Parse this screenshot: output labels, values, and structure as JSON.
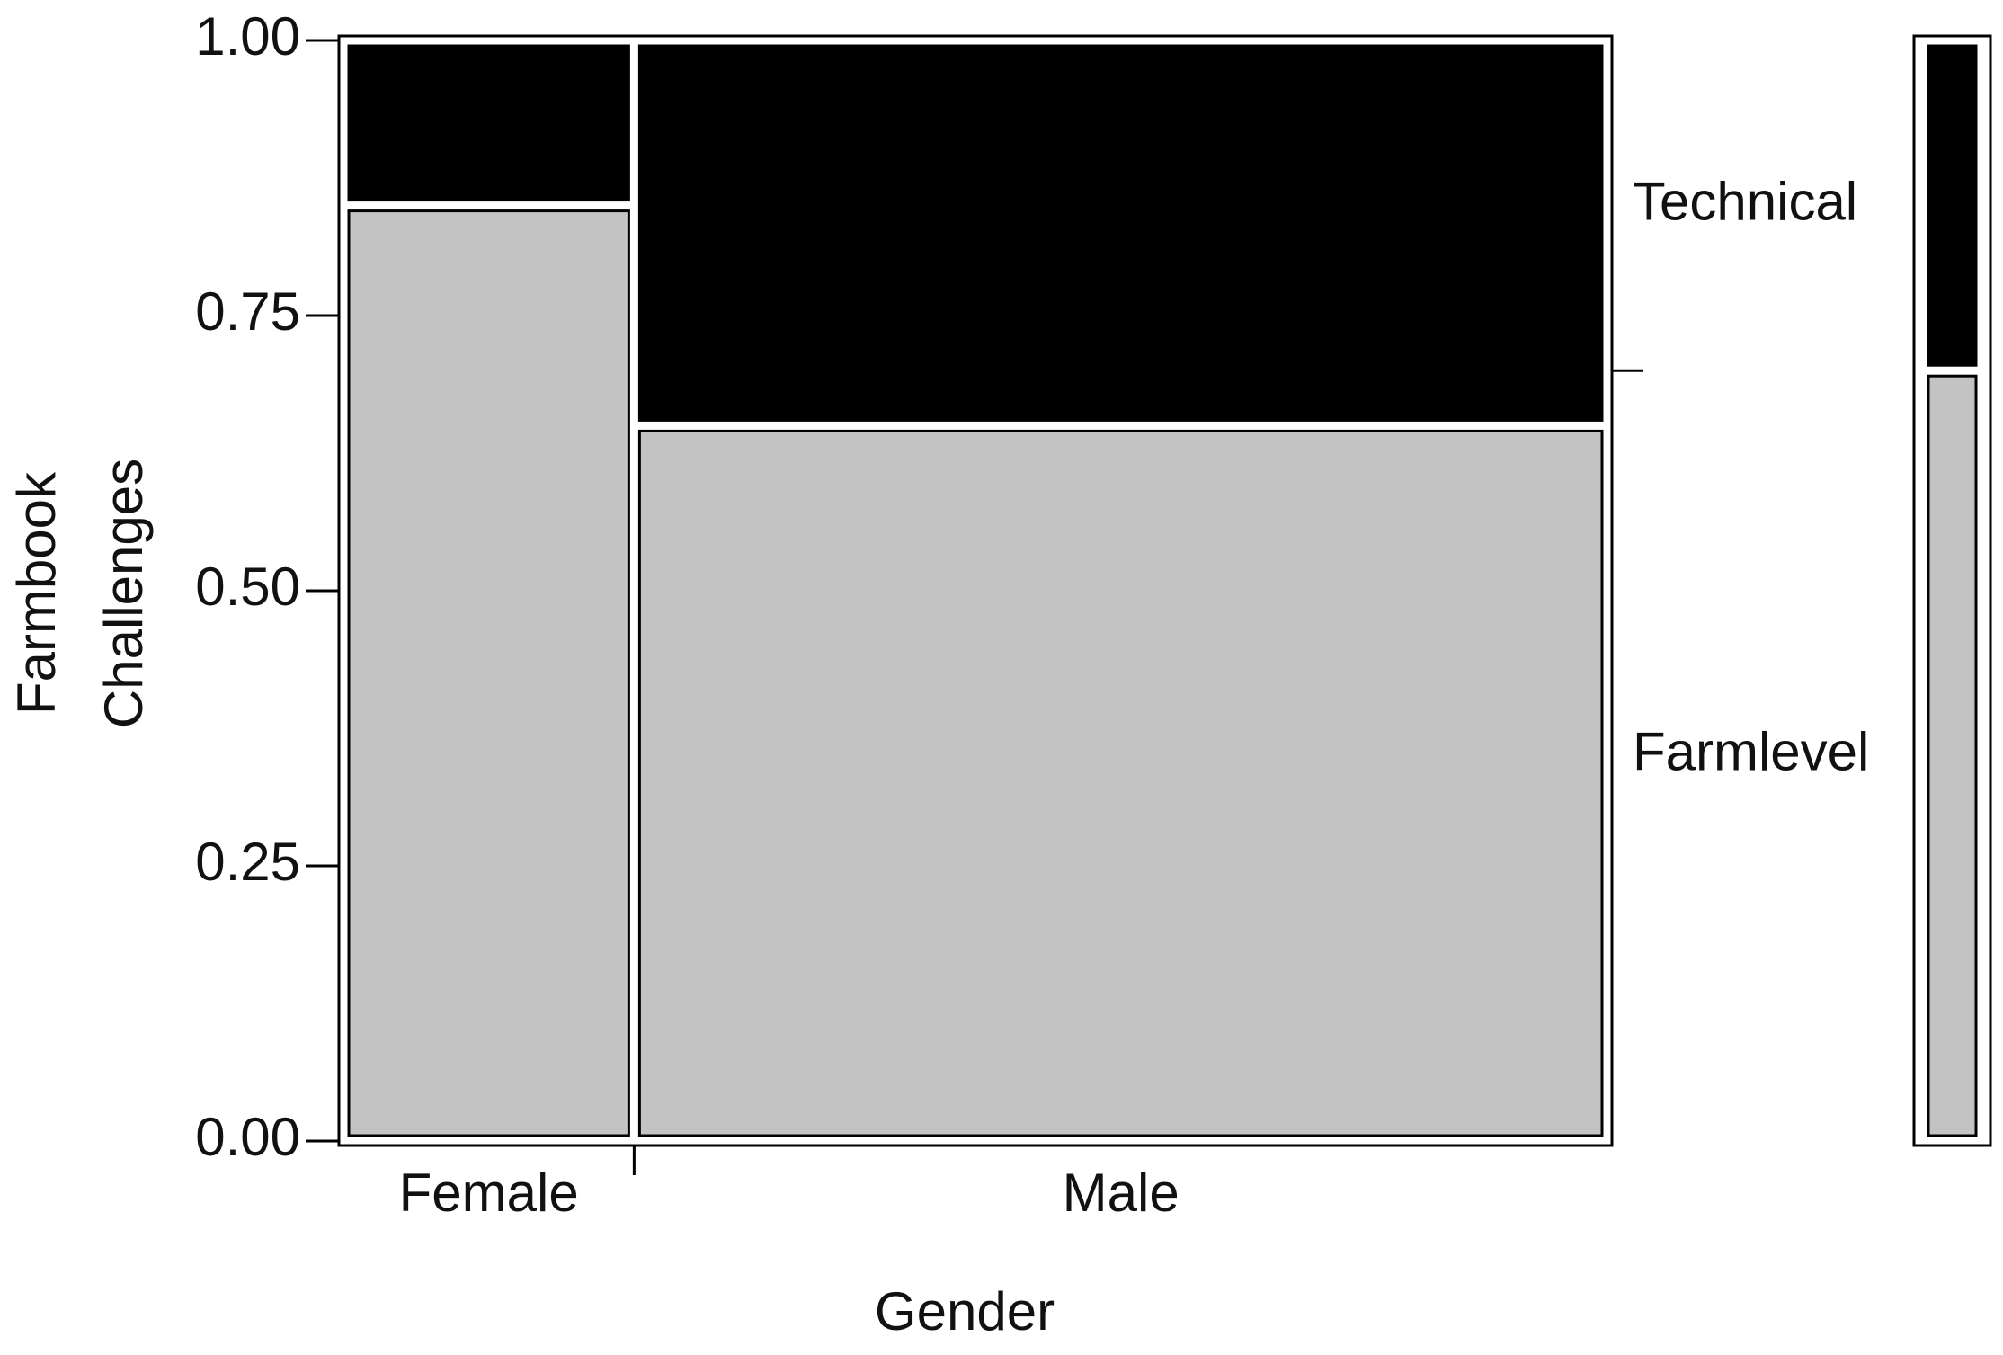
{
  "chart_data": {
    "type": "mosaic",
    "xlabel": "Gender",
    "ylabel_lines": [
      "Farmbook",
      "Challenges"
    ],
    "categories": [
      "Female",
      "Male"
    ],
    "widths": [
      0.23,
      0.77
    ],
    "series": [
      {
        "name": "Farmlevel",
        "color": "#c3c3c3",
        "values": [
          0.85,
          0.65
        ],
        "overall": 0.7
      },
      {
        "name": "Technical",
        "color": "#000000",
        "values": [
          0.15,
          0.35
        ],
        "overall": 0.3
      }
    ],
    "ylim": [
      0,
      1
    ],
    "yticks": [
      {
        "value": 0,
        "label": "0.00"
      },
      {
        "value": 0.25,
        "label": "0.25"
      },
      {
        "value": 0.5,
        "label": "0.50"
      },
      {
        "value": 0.75,
        "label": "0.75"
      },
      {
        "value": 1,
        "label": "1.00"
      }
    ]
  }
}
